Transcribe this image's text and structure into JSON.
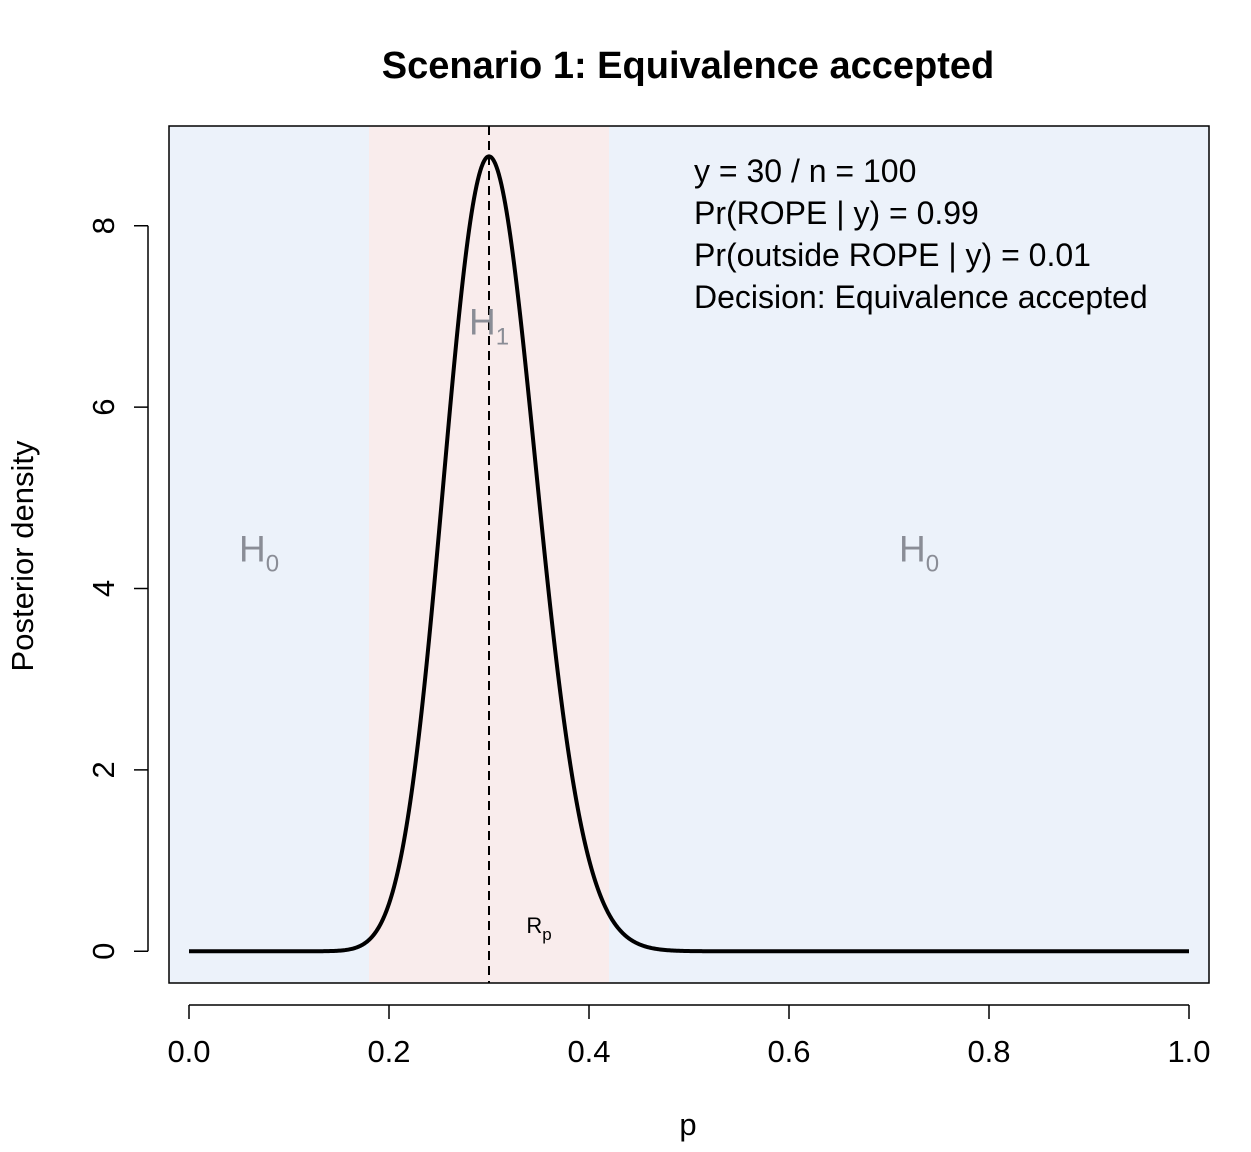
{
  "chart_data": {
    "type": "line",
    "title": "Scenario 1: Equivalence accepted",
    "xlabel": "p",
    "ylabel": "Posterior density",
    "xlim": [
      -0.02,
      1.02
    ],
    "ylim": [
      -0.35,
      9.1
    ],
    "x_ticks": [
      {
        "value": 0.0,
        "label": "0.0"
      },
      {
        "value": 0.2,
        "label": "0.2"
      },
      {
        "value": 0.4,
        "label": "0.4"
      },
      {
        "value": 0.6,
        "label": "0.6"
      },
      {
        "value": 0.8,
        "label": "0.8"
      },
      {
        "value": 1.0,
        "label": "1.0"
      }
    ],
    "y_ticks": [
      {
        "value": 0,
        "label": "0"
      },
      {
        "value": 2,
        "label": "2"
      },
      {
        "value": 4,
        "label": "4"
      },
      {
        "value": 6,
        "label": "6"
      },
      {
        "value": 8,
        "label": "8"
      }
    ],
    "grid": false,
    "rope": {
      "lower": 0.18,
      "upper": 0.42,
      "color": "#f9ecec"
    },
    "outside_color": "#ecf2fa",
    "reference_line": {
      "x": 0.3,
      "style": "dashed"
    },
    "series": [
      {
        "distribution": "beta",
        "alpha": 31,
        "beta": 71,
        "x_range": [
          0.0,
          1.0
        ],
        "color": "#000000",
        "peak": {
          "x": 0.3,
          "y": 8.78
        }
      }
    ],
    "region_labels": [
      {
        "key": "h0_left",
        "main": "H",
        "sub": "0",
        "x": 0.07,
        "y": 4.3
      },
      {
        "key": "h1_mid",
        "main": "H",
        "sub": "1",
        "x": 0.3,
        "y": 6.8
      },
      {
        "key": "h0_right",
        "main": "H",
        "sub": "0",
        "x": 0.73,
        "y": 4.3
      }
    ],
    "rope_label": {
      "main": "R",
      "sub": "p",
      "x": 0.35,
      "y": 0.2
    },
    "annotations": [
      "y = 30 / n = 100",
      "Pr(ROPE | y) = 0.99",
      "Pr(outside ROPE | y) = 0.01",
      "Decision: Equivalence accepted"
    ]
  }
}
